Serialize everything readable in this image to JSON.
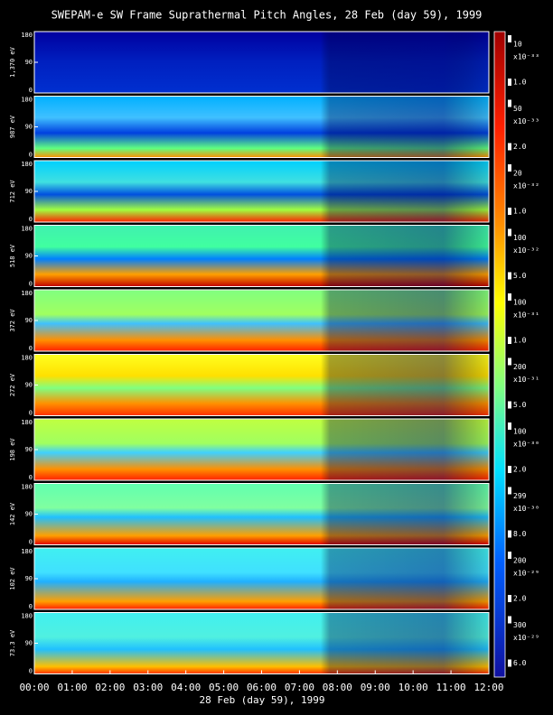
{
  "title": "SWEPAM-e SW Frame Suprathermal Pitch Angles, 28 Feb (day  59), 1999",
  "x_label": "28 Feb (day  59), 1999",
  "x_ticks": [
    "00:00",
    "01:00",
    "02:00",
    "03:00",
    "04:00",
    "05:00",
    "06:00",
    "07:00",
    "08:00",
    "09:00",
    "10:00",
    "11:00",
    "12:00"
  ],
  "ylim": [
    0,
    180
  ],
  "yticks": [
    0,
    90,
    180
  ],
  "panels": [
    {
      "label": "1,370 eV",
      "cb_top": "10",
      "cb_exp": "x10⁻³³",
      "cb_bottom": "1.0"
    },
    {
      "label": "987 eV",
      "cb_top": "50",
      "cb_exp": "x10⁻³³",
      "cb_bottom": "2.0"
    },
    {
      "label": "712 eV",
      "cb_top": "20",
      "cb_exp": "x10⁻³²",
      "cb_bottom": "1.0"
    },
    {
      "label": "518 eV",
      "cb_top": "100",
      "cb_exp": "x10⁻³²",
      "cb_bottom": "5.0"
    },
    {
      "label": "372 eV",
      "cb_top": "100",
      "cb_exp": "x10⁻³¹",
      "cb_bottom": "1.0"
    },
    {
      "label": "272 eV",
      "cb_top": "200",
      "cb_exp": "x10⁻³¹",
      "cb_bottom": "5.0"
    },
    {
      "label": "198 eV",
      "cb_top": "100",
      "cb_exp": "x10⁻³⁰",
      "cb_bottom": "2.0"
    },
    {
      "label": "142 eV",
      "cb_top": "299",
      "cb_exp": "x10⁻³⁰",
      "cb_bottom": "8.0"
    },
    {
      "label": "102 eV",
      "cb_top": "200",
      "cb_exp": "x10⁻²⁹",
      "cb_bottom": "2.0"
    },
    {
      "label": "73.3 eV",
      "cb_top": "300",
      "cb_exp": "x10⁻²⁹",
      "cb_bottom": "6.0"
    }
  ]
}
